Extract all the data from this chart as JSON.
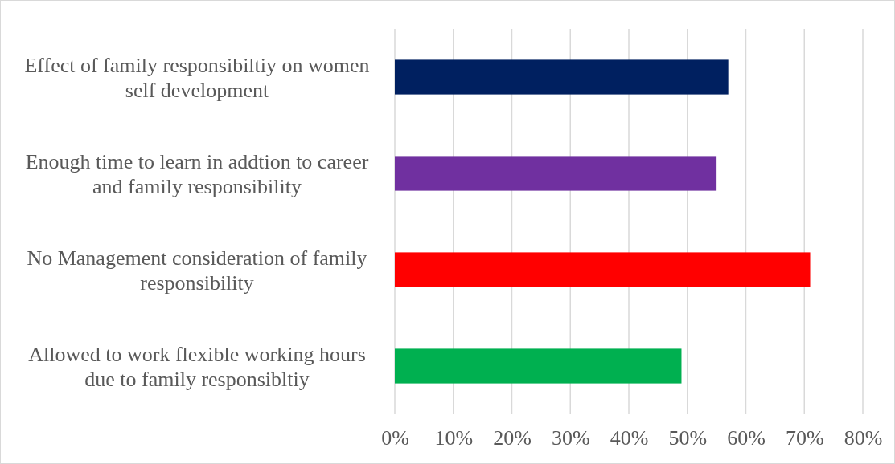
{
  "chart_data": {
    "type": "bar",
    "orientation": "horizontal",
    "categories": [
      "Effect of family responsibiltiy on women self development",
      "Enough time to learn in addtion to career and family responsibility",
      "No Management consideration of family responsibility",
      "Allowed to work flexible working hours due to family responsibltiy"
    ],
    "values": [
      57,
      55,
      71,
      49
    ],
    "colors": [
      "#002060",
      "#7030a0",
      "#ff0000",
      "#00b050"
    ],
    "xlim": [
      0,
      80
    ],
    "xticks": [
      {
        "value": 0,
        "label": "0%"
      },
      {
        "value": 10,
        "label": "10%"
      },
      {
        "value": 20,
        "label": "20%"
      },
      {
        "value": 30,
        "label": "30%"
      },
      {
        "value": 40,
        "label": "40%"
      },
      {
        "value": 50,
        "label": "50%"
      },
      {
        "value": 60,
        "label": "60%"
      },
      {
        "value": 70,
        "label": "70%"
      },
      {
        "value": 80,
        "label": "80%"
      }
    ],
    "grid": "x"
  }
}
